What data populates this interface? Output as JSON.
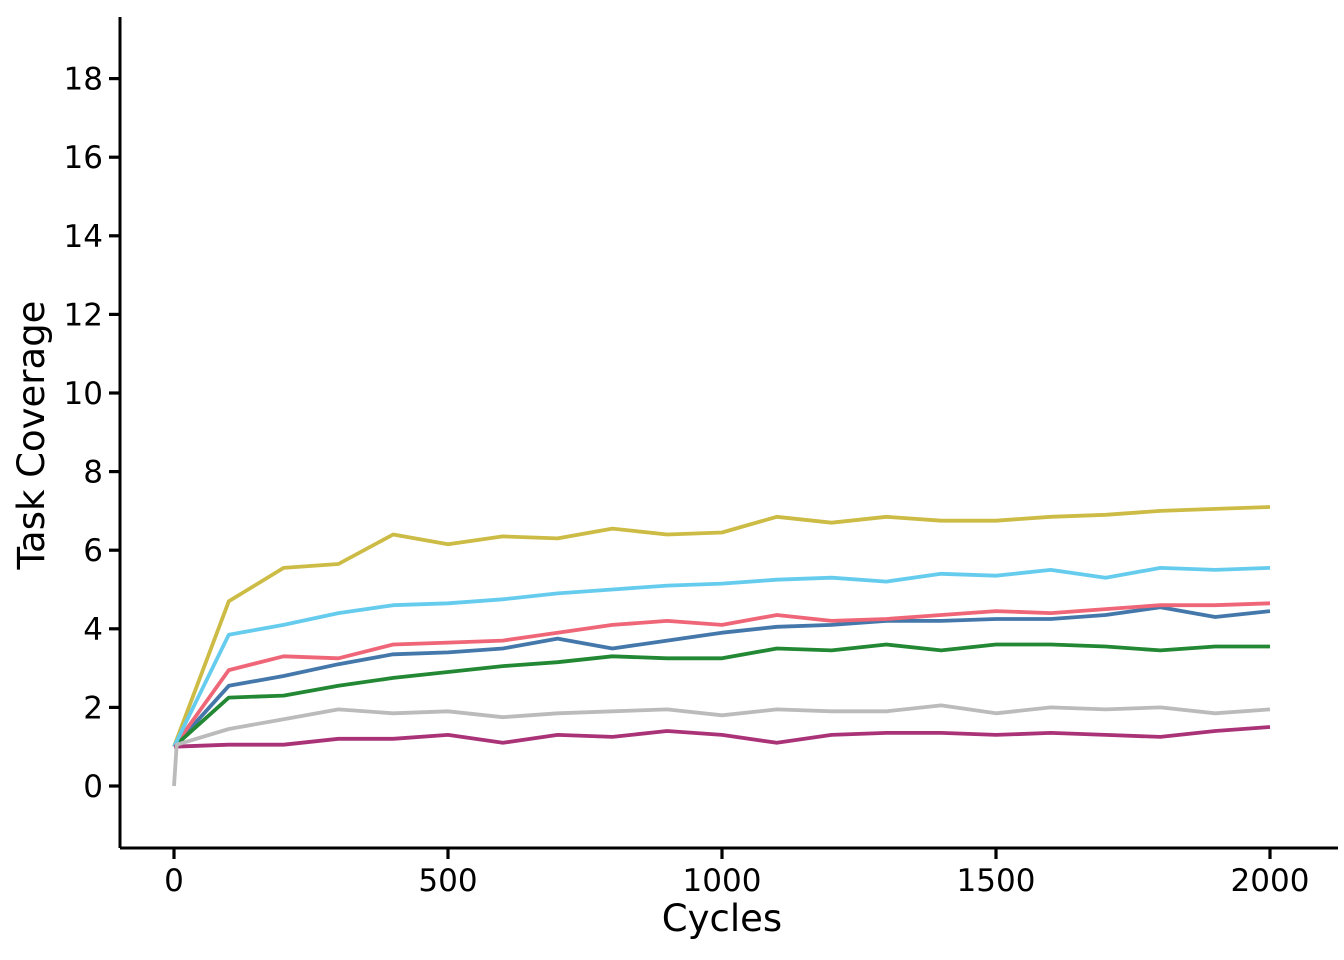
{
  "chart_data": {
    "type": "line",
    "title": "",
    "xlabel": "Cycles",
    "ylabel": "Task Coverage",
    "x_ticks": [
      0,
      500,
      1000,
      1500,
      2000
    ],
    "x_tick_labels": [
      "0",
      "500",
      "1000",
      "1500",
      "2000"
    ],
    "y_ticks": [
      0,
      2,
      4,
      6,
      8,
      10,
      12,
      14,
      16,
      18
    ],
    "y_tick_labels": [
      "0",
      "2",
      "4",
      "6",
      "8",
      "10",
      "12",
      "14",
      "16",
      "18"
    ],
    "xlim": [
      -100,
      2135
    ],
    "ylim": [
      -1.6,
      19.6
    ],
    "grid": false,
    "legend": "none",
    "background_color": "#ffffff",
    "axis_color": "#000000",
    "line_width": 3.8,
    "x": [
      0,
      100,
      200,
      300,
      400,
      500,
      600,
      700,
      800,
      900,
      1000,
      1100,
      1200,
      1300,
      1400,
      1500,
      1600,
      1700,
      1800,
      1900,
      2000
    ],
    "series": [
      {
        "name": "blue",
        "color": "#4477AA",
        "values": [
          1.0,
          2.55,
          2.8,
          3.1,
          3.35,
          3.4,
          3.5,
          3.75,
          3.5,
          3.7,
          3.9,
          4.05,
          4.1,
          4.2,
          4.2,
          4.25,
          4.25,
          4.35,
          4.55,
          4.3,
          4.45
        ]
      },
      {
        "name": "red",
        "color": "#EE6677",
        "values": [
          1.0,
          2.95,
          3.3,
          3.25,
          3.6,
          3.65,
          3.7,
          3.9,
          4.1,
          4.2,
          4.1,
          4.35,
          4.2,
          4.25,
          4.35,
          4.45,
          4.4,
          4.5,
          4.6,
          4.6,
          4.65
        ]
      },
      {
        "name": "green",
        "color": "#228833",
        "values": [
          1.0,
          2.25,
          2.3,
          2.55,
          2.75,
          2.9,
          3.05,
          3.15,
          3.3,
          3.25,
          3.25,
          3.5,
          3.45,
          3.6,
          3.45,
          3.6,
          3.6,
          3.55,
          3.45,
          3.55,
          3.55
        ]
      },
      {
        "name": "yellow",
        "color": "#CCBB44",
        "values": [
          1.0,
          4.7,
          5.55,
          5.65,
          6.4,
          6.15,
          6.35,
          6.3,
          6.55,
          6.4,
          6.45,
          6.85,
          6.7,
          6.85,
          6.75,
          6.75,
          6.85,
          6.9,
          7.0,
          7.05,
          7.1
        ]
      },
      {
        "name": "cyan",
        "color": "#66CCEE",
        "values": [
          1.0,
          3.85,
          4.1,
          4.4,
          4.6,
          4.65,
          4.75,
          4.9,
          5.0,
          5.1,
          5.15,
          5.25,
          5.3,
          5.2,
          5.4,
          5.35,
          5.5,
          5.3,
          5.55,
          5.5,
          5.55
        ]
      },
      {
        "name": "purple",
        "color": "#AA3377",
        "values": [
          1.0,
          1.05,
          1.05,
          1.2,
          1.2,
          1.3,
          1.1,
          1.3,
          1.25,
          1.4,
          1.3,
          1.1,
          1.3,
          1.35,
          1.35,
          1.3,
          1.35,
          1.3,
          1.25,
          1.4,
          1.5
        ]
      },
      {
        "name": "grey",
        "color": "#BBBBBB",
        "x": [
          0,
          5,
          100,
          200,
          300,
          400,
          500,
          600,
          700,
          800,
          900,
          1000,
          1100,
          1200,
          1300,
          1400,
          1500,
          1600,
          1700,
          1800,
          1900,
          2000
        ],
        "values": [
          0.0,
          1.05,
          1.45,
          1.7,
          1.95,
          1.85,
          1.9,
          1.75,
          1.85,
          1.9,
          1.95,
          1.8,
          1.95,
          1.9,
          1.9,
          2.05,
          1.85,
          2.0,
          1.95,
          2.0,
          1.85,
          1.95
        ]
      }
    ]
  }
}
